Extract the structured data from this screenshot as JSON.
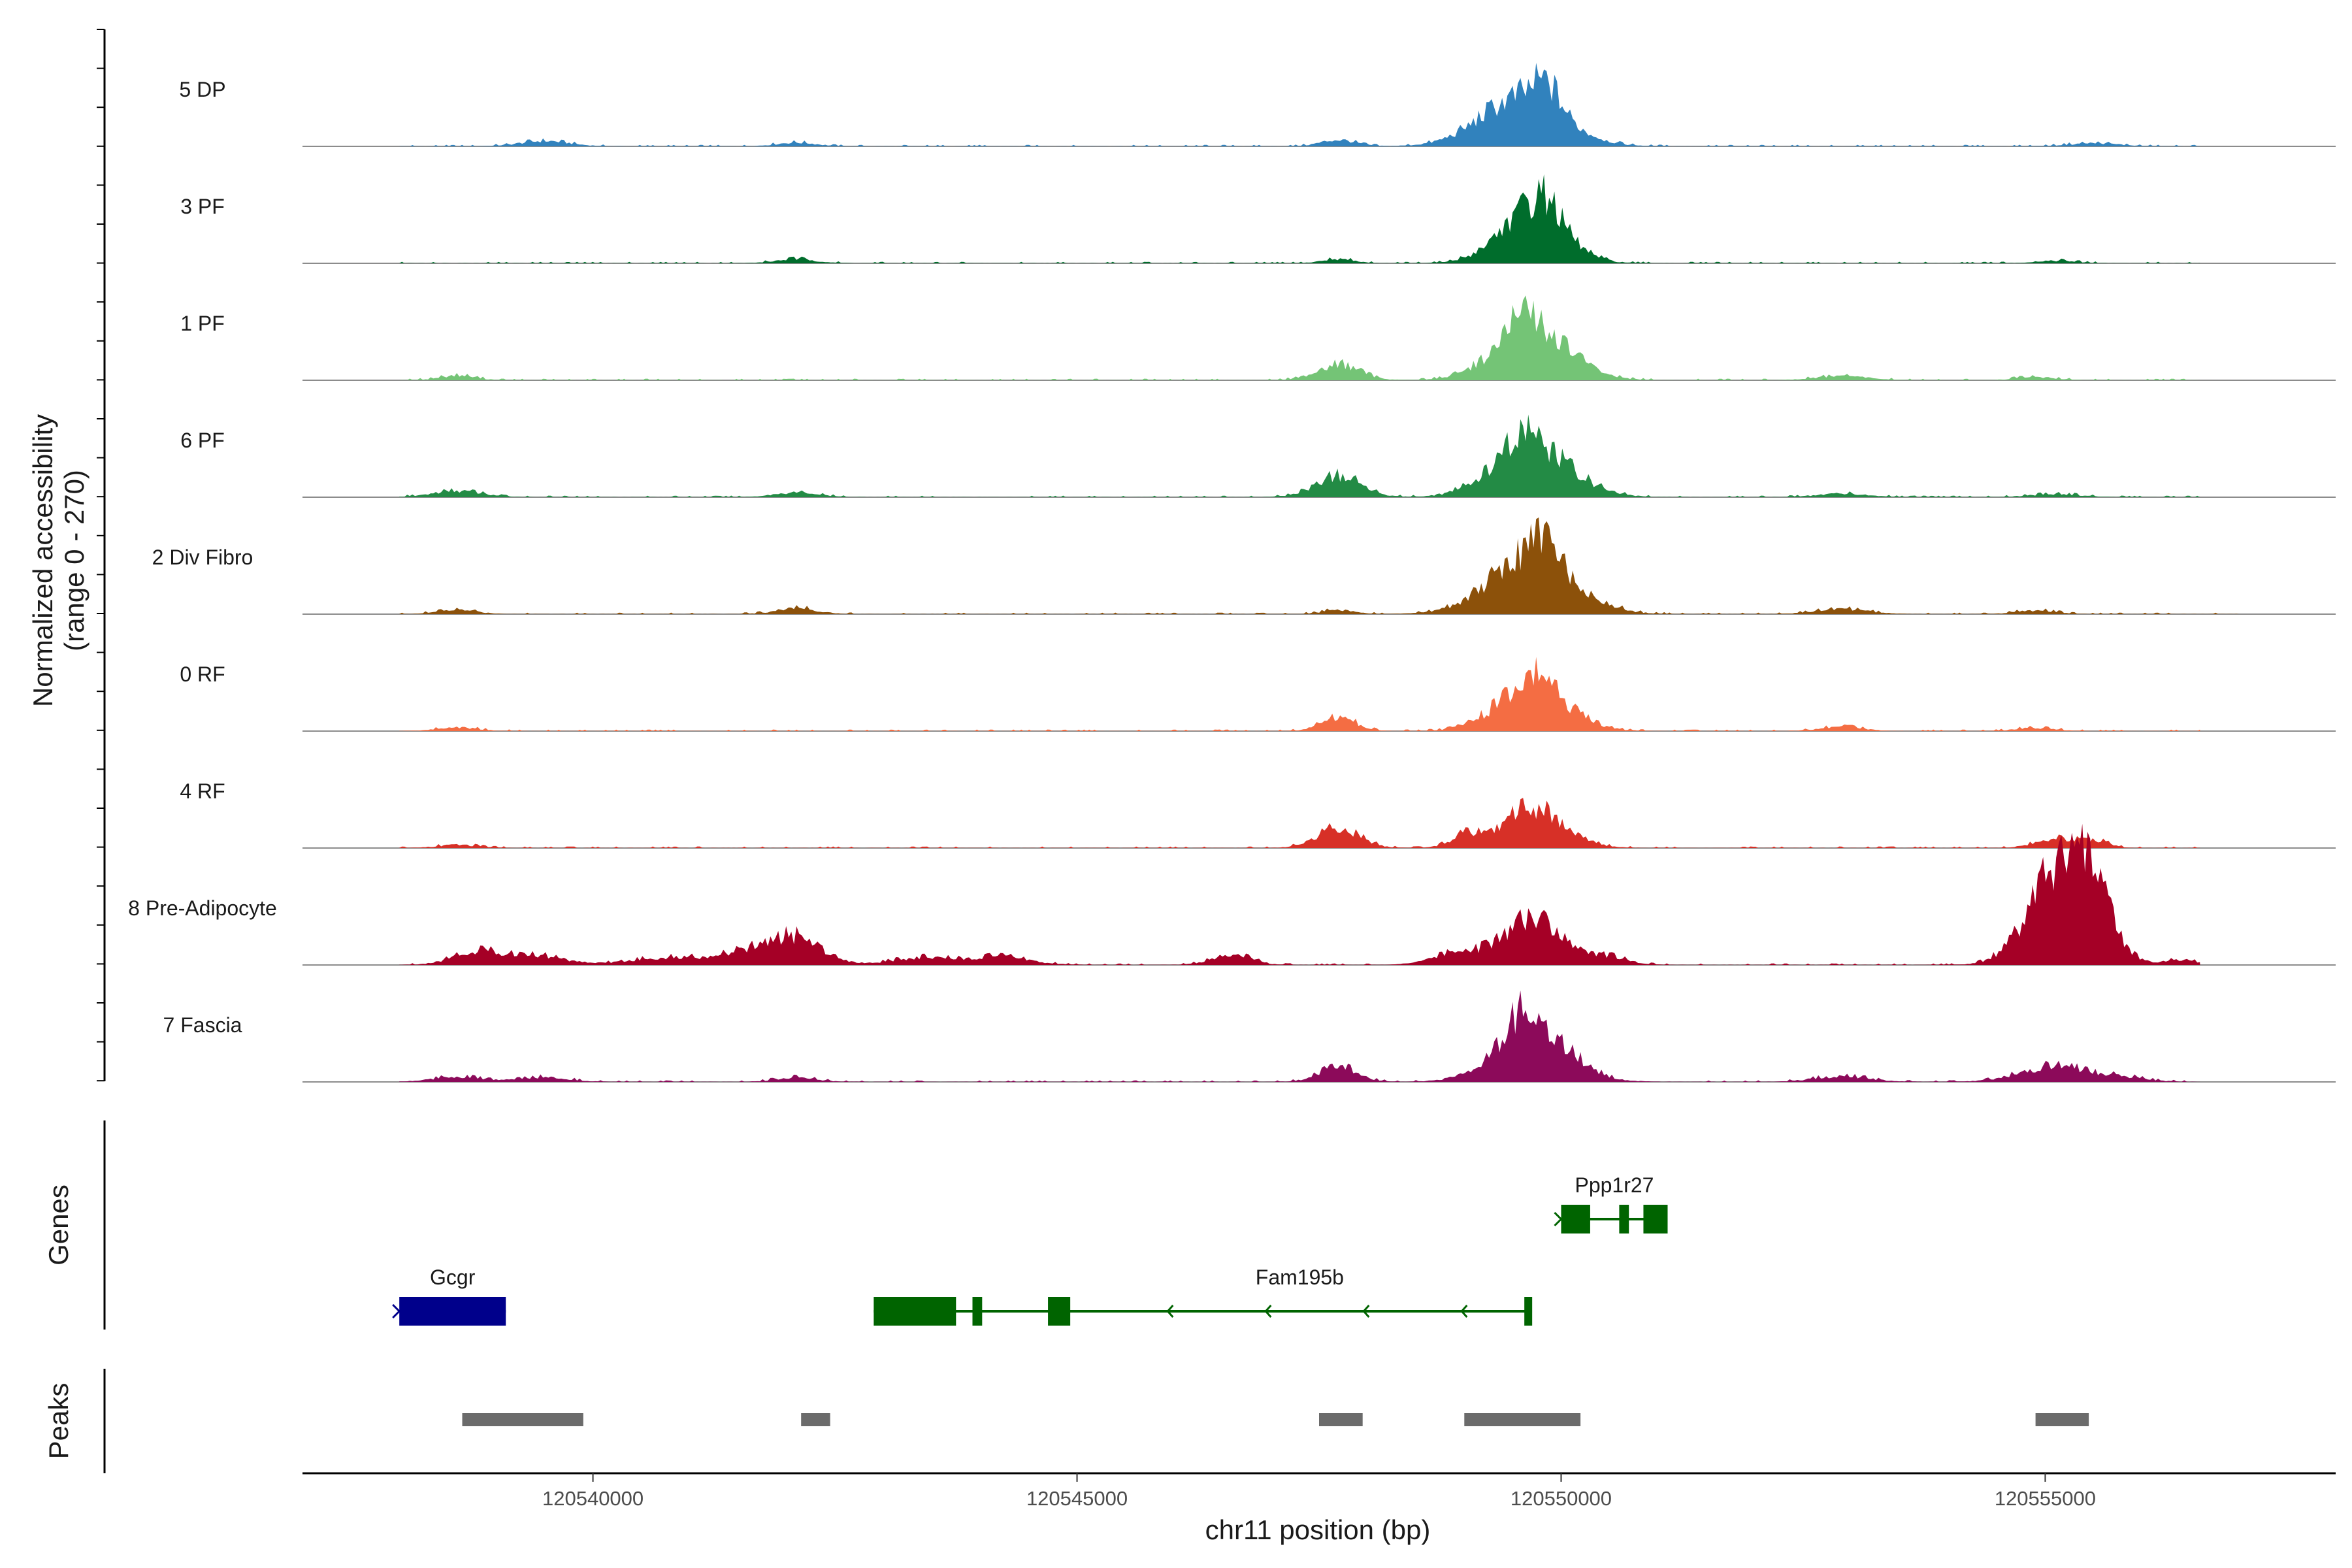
{
  "chart_data": {
    "type": "area",
    "title": "",
    "ylabel_line1": "Normalized accessibility",
    "ylabel_line2": "(range 0 - 270)",
    "xlabel": "chr11 position (bp)",
    "genes_label": "Genes",
    "peaks_label": "Peaks",
    "xlim": [
      120537000,
      120558000
    ],
    "ylim": [
      0,
      270
    ],
    "x_ticks": [
      120540000,
      120545000,
      120550000,
      120555000
    ],
    "x_tick_labels": [
      "120540000",
      "120545000",
      "120550000",
      "120555000"
    ],
    "tracks": [
      {
        "name": "5 DP",
        "color": "#3182bd",
        "span": [
          120538000,
          120556600
        ],
        "peaks": [
          [
            120539500,
            10,
            250
          ],
          [
            120542100,
            7,
            200
          ],
          [
            120547700,
            12,
            180
          ],
          [
            120549600,
            95,
            420
          ],
          [
            120549850,
            45,
            130
          ],
          [
            120555500,
            6,
            250
          ]
        ]
      },
      {
        "name": "3 PF",
        "color": "#006d2c",
        "span": [
          120538000,
          120556600
        ],
        "peaks": [
          [
            120542100,
            8,
            200
          ],
          [
            120547700,
            8,
            160
          ],
          [
            120549700,
            105,
            330
          ],
          [
            120549850,
            35,
            120
          ],
          [
            120555100,
            5,
            200
          ]
        ]
      },
      {
        "name": "1 PF",
        "color": "#74c476",
        "span": [
          120538000,
          120556600
        ],
        "peaks": [
          [
            120538600,
            9,
            180
          ],
          [
            120547700,
            30,
            220
          ],
          [
            120549700,
            100,
            380
          ],
          [
            120549600,
            35,
            120
          ],
          [
            120552900,
            8,
            260
          ],
          [
            120554900,
            6,
            200
          ]
        ]
      },
      {
        "name": "6 PF",
        "color": "#238b45",
        "span": [
          120538000,
          120556600
        ],
        "peaks": [
          [
            120538600,
            12,
            250
          ],
          [
            120542100,
            9,
            220
          ],
          [
            120547700,
            40,
            240
          ],
          [
            120549700,
            95,
            400
          ],
          [
            120549600,
            35,
            130
          ],
          [
            120552900,
            7,
            250
          ],
          [
            120555100,
            6,
            250
          ]
        ]
      },
      {
        "name": "2 Div Fibro",
        "color": "#8c510a",
        "span": [
          120538000,
          120557000
        ],
        "peaks": [
          [
            120538600,
            8,
            200
          ],
          [
            120542100,
            12,
            200
          ],
          [
            120547700,
            8,
            160
          ],
          [
            120549700,
            110,
            430
          ],
          [
            120549800,
            40,
            150
          ],
          [
            120552900,
            10,
            260
          ],
          [
            120554900,
            7,
            200
          ]
        ]
      },
      {
        "name": "0 RF",
        "color": "#f46d43",
        "span": [
          120538000,
          120556600
        ],
        "peaks": [
          [
            120538600,
            7,
            200
          ],
          [
            120547700,
            27,
            180
          ],
          [
            120549700,
            85,
            360
          ],
          [
            120549800,
            30,
            120
          ],
          [
            120552900,
            8,
            220
          ],
          [
            120554900,
            6,
            200
          ]
        ]
      },
      {
        "name": "4 RF",
        "color": "#d73027",
        "span": [
          120538000,
          120556600
        ],
        "peaks": [
          [
            120538600,
            6,
            200
          ],
          [
            120547700,
            38,
            220
          ],
          [
            120549700,
            75,
            330
          ],
          [
            120549000,
            20,
            150
          ],
          [
            120555100,
            18,
            200
          ],
          [
            120555500,
            14,
            150
          ]
        ]
      },
      {
        "name": "8 Pre-Adipocyte",
        "color": "#a50026",
        "span": [
          120538000,
          120556600
        ],
        "peaks": [
          [
            120538800,
            25,
            250
          ],
          [
            120539400,
            18,
            300
          ],
          [
            120540800,
            14,
            400
          ],
          [
            120541600,
            20,
            300
          ],
          [
            120542100,
            50,
            280
          ],
          [
            120543400,
            14,
            300
          ],
          [
            120544200,
            16,
            300
          ],
          [
            120546600,
            20,
            200
          ],
          [
            120548900,
            20,
            250
          ],
          [
            120549700,
            85,
            320
          ],
          [
            120550500,
            14,
            200
          ],
          [
            120555200,
            200,
            330
          ],
          [
            120555500,
            60,
            150
          ],
          [
            120556400,
            10,
            150
          ]
        ]
      },
      {
        "name": "7 Fascia",
        "color": "#8c0a5a",
        "span": [
          120538000,
          120556600
        ],
        "peaks": [
          [
            120538600,
            10,
            250
          ],
          [
            120539500,
            9,
            250
          ],
          [
            120542100,
            9,
            200
          ],
          [
            120547700,
            28,
            200
          ],
          [
            120549700,
            100,
            380
          ],
          [
            120549600,
            40,
            150
          ],
          [
            120552900,
            11,
            280
          ],
          [
            120555100,
            30,
            350
          ],
          [
            120555800,
            8,
            250
          ]
        ]
      }
    ],
    "genes": [
      {
        "name": "Gcgr",
        "color": "#00008b",
        "row": 2,
        "strand": "+",
        "start": 120538000,
        "end": 120539100,
        "exons": [
          [
            120538000,
            120539100
          ]
        ]
      },
      {
        "name": "Fam195b",
        "color": "#006400",
        "row": 2,
        "strand": "-",
        "start": 120542900,
        "end": 120549700,
        "exons": [
          [
            120542900,
            120543750
          ],
          [
            120543920,
            120544020
          ],
          [
            120544700,
            120544930
          ],
          [
            120549620,
            120549700
          ]
        ]
      },
      {
        "name": "Ppp1r27",
        "color": "#006400",
        "row": 1,
        "strand": "+",
        "start": 120550000,
        "end": 120551100,
        "exons": [
          [
            120550000,
            120550300
          ],
          [
            120550600,
            120550700
          ],
          [
            120550850,
            120551100
          ]
        ]
      }
    ],
    "peak_regions": [
      [
        120538650,
        120539900
      ],
      [
        120542150,
        120542450
      ],
      [
        120547500,
        120547950
      ],
      [
        120549000,
        120550200
      ],
      [
        120554900,
        120555450
      ]
    ]
  }
}
